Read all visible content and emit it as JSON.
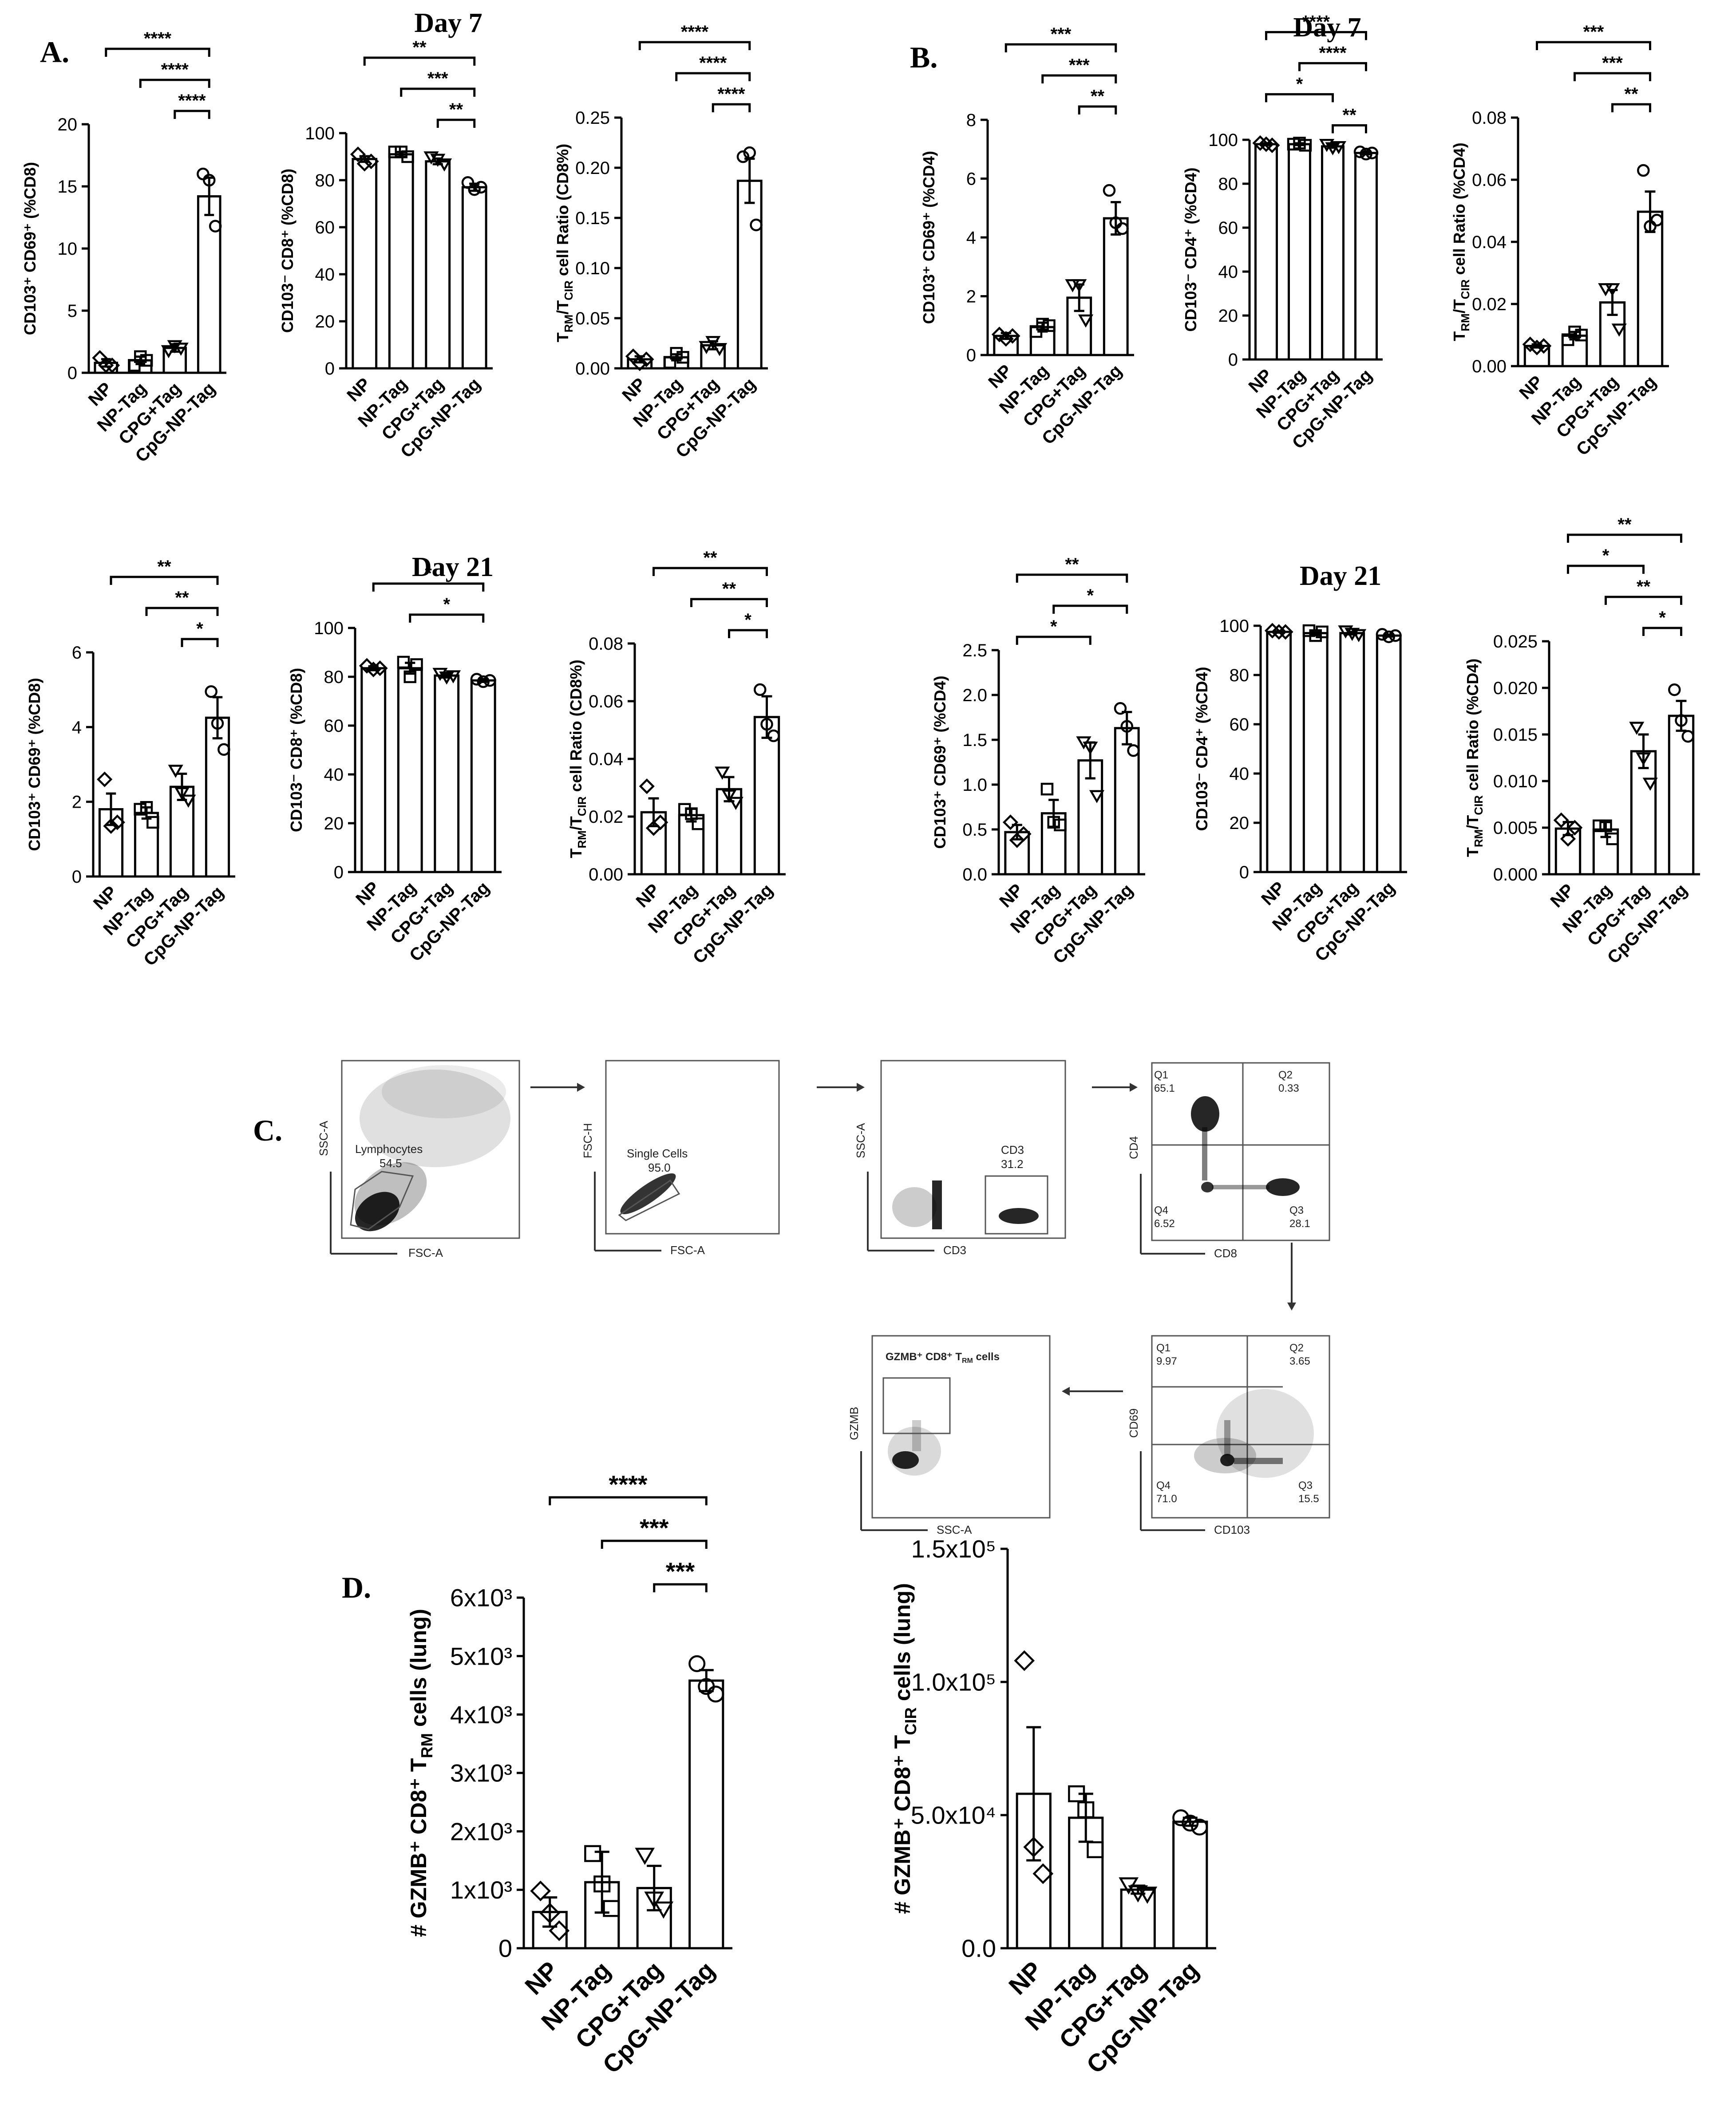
{
  "panels": {
    "A": "A.",
    "B": "B.",
    "C": "C.",
    "D": "D."
  },
  "days": {
    "a_day7": "Day 7",
    "a_day21": "Day 21",
    "b_day7": "Day 7",
    "b_day21": "Day 21"
  },
  "flow": {
    "lymph": {
      "xaxis": "FSC-A",
      "yaxis": "SSC-A",
      "gate": "Lymphocytes",
      "value": "54.5"
    },
    "single": {
      "xaxis": "FSC-A",
      "yaxis": "FSC-H",
      "gate": "Single Cells",
      "value": "95.0"
    },
    "cd3": {
      "xaxis": "CD3",
      "yaxis": "SSC-A",
      "gate": "CD3",
      "value": "31.2"
    },
    "cd4cd8": {
      "xaxis": "CD8",
      "yaxis": "CD4",
      "q": [
        {
          "label": "Q1",
          "value": "65.1"
        },
        {
          "label": "Q2",
          "value": "0.33"
        },
        {
          "label": "Q4",
          "value": "6.52"
        },
        {
          "label": "Q3",
          "value": "28.1"
        }
      ]
    },
    "cd69": {
      "xaxis": "CD103",
      "yaxis": "CD69",
      "q": [
        {
          "label": "Q1",
          "value": "9.97"
        },
        {
          "label": "Q2",
          "value": "3.65"
        },
        {
          "label": "Q4",
          "value": "71.0"
        },
        {
          "label": "Q3",
          "value": "15.5"
        }
      ]
    },
    "gzmb": {
      "xaxis": "SSC-A",
      "yaxis": "GZMB",
      "title": "GZMB⁺ CD8⁺ T",
      "title_sub": "RM",
      "title_tail": " cells"
    }
  },
  "chart_data": [
    {
      "id": "a1",
      "type": "bar",
      "categories": [
        "NP",
        "NP-Tag",
        "CPG+Tag",
        "CpG-NP-Tag"
      ],
      "ylabel": "CD103⁺ CD69⁺ (%CD8)",
      "ylim": [
        0,
        20
      ],
      "yticks": [
        "0",
        "5",
        "10",
        "15",
        "20"
      ],
      "values": [
        0.8,
        1.0,
        2.0,
        14.2
      ],
      "sem": [
        0.3,
        0.3,
        0.3,
        1.5
      ],
      "points": [
        [
          1.2,
          0.6,
          0.6
        ],
        [
          0.6,
          1.3,
          1.0
        ],
        [
          1.8,
          2.2,
          2.0
        ],
        [
          16.0,
          15.5,
          11.8
        ]
      ],
      "markers": [
        "diamond",
        "square",
        "triangle",
        "circle"
      ],
      "sig": [
        {
          "from": 0,
          "to": 3,
          "label": "****"
        },
        {
          "from": 1,
          "to": 3,
          "label": "****"
        },
        {
          "from": 2,
          "to": 3,
          "label": "****"
        }
      ]
    },
    {
      "id": "a2",
      "type": "bar",
      "categories": [
        "NP",
        "NP-Tag",
        "CPG+Tag",
        "CpG-NP-Tag"
      ],
      "ylabel": "CD103⁻ CD8⁺ (%CD8)",
      "ylim": [
        0,
        100
      ],
      "yticks": [
        "0",
        "20",
        "40",
        "60",
        "80",
        "100"
      ],
      "values": [
        89,
        91,
        88,
        77
      ],
      "sem": [
        1.2,
        1.0,
        1.2,
        1.5
      ],
      "points": [
        [
          91,
          87,
          88
        ],
        [
          92,
          92,
          90
        ],
        [
          90,
          89,
          87
        ],
        [
          79,
          76,
          77
        ]
      ],
      "markers": [
        "diamond",
        "square",
        "triangle",
        "circle"
      ],
      "sig": [
        {
          "from": 0,
          "to": 3,
          "label": "**"
        },
        {
          "from": 1,
          "to": 3,
          "label": "***"
        },
        {
          "from": 2,
          "to": 3,
          "label": "**"
        }
      ]
    },
    {
      "id": "a3",
      "type": "bar",
      "categories": [
        "NP",
        "NP-Tag",
        "CPG+Tag",
        "CpG-NP-Tag"
      ],
      "ylabel": "T",
      "ylabel_parts": [
        [
          "T",
          ""
        ],
        [
          "RM",
          "sub"
        ],
        [
          "/T",
          ""
        ],
        [
          "CIR",
          "sub"
        ],
        [
          " cell Ratio (CD8%)",
          ""
        ]
      ],
      "ylim": [
        0,
        0.25
      ],
      "yticks": [
        "0.00",
        "0.05",
        "0.10",
        "0.15",
        "0.20",
        "0.25"
      ],
      "values": [
        0.009,
        0.011,
        0.023,
        0.187
      ],
      "sem": [
        0.003,
        0.003,
        0.004,
        0.022
      ],
      "points": [
        [
          0.012,
          0.005,
          0.009
        ],
        [
          0.006,
          0.015,
          0.011
        ],
        [
          0.022,
          0.027,
          0.02
        ],
        [
          0.211,
          0.215,
          0.143
        ]
      ],
      "markers": [
        "diamond",
        "square",
        "triangle",
        "circle"
      ],
      "sig": [
        {
          "from": 0,
          "to": 3,
          "label": "****"
        },
        {
          "from": 1,
          "to": 3,
          "label": "****"
        },
        {
          "from": 2,
          "to": 3,
          "label": "****"
        }
      ]
    },
    {
      "id": "b1",
      "type": "bar",
      "categories": [
        "NP",
        "NP-Tag",
        "CPG+Tag",
        "CpG-NP-Tag"
      ],
      "ylabel": "CD103⁺ CD69⁺ (%CD4)",
      "ylim": [
        0,
        8
      ],
      "yticks": [
        "0",
        "2",
        "4",
        "6",
        "8"
      ],
      "values": [
        0.65,
        0.95,
        1.95,
        4.65
      ],
      "sem": [
        0.1,
        0.15,
        0.45,
        0.55
      ],
      "points": [
        [
          0.7,
          0.55,
          0.65
        ],
        [
          0.8,
          1.05,
          1.0
        ],
        [
          2.4,
          2.4,
          1.2
        ],
        [
          5.6,
          4.5,
          4.3
        ]
      ],
      "markers": [
        "diamond",
        "square",
        "triangle",
        "circle"
      ],
      "sig": [
        {
          "from": 0,
          "to": 3,
          "label": "***"
        },
        {
          "from": 1,
          "to": 3,
          "label": "***"
        },
        {
          "from": 2,
          "to": 3,
          "label": "**"
        }
      ]
    },
    {
      "id": "b2",
      "type": "bar",
      "categories": [
        "NP",
        "NP-Tag",
        "CPG+Tag",
        "CpG-NP-Tag"
      ],
      "ylabel": "CD103⁻ CD4⁺ (%CD4)",
      "ylim": [
        0,
        100
      ],
      "yticks": [
        "0",
        "20",
        "40",
        "60",
        "80",
        "100"
      ],
      "values": [
        98,
        98,
        97,
        94
      ],
      "sem": [
        0.4,
        0.4,
        0.6,
        0.6
      ],
      "points": [
        [
          98.5,
          98,
          97.5
        ],
        [
          98,
          98.5,
          97.5
        ],
        [
          98,
          96.5,
          97
        ],
        [
          94.5,
          93.5,
          94
        ]
      ],
      "markers": [
        "diamond",
        "square",
        "triangle",
        "circle"
      ],
      "sig": [
        {
          "from": 0,
          "to": 3,
          "label": "****"
        },
        {
          "from": 1,
          "to": 3,
          "label": "****"
        },
        {
          "from": 0,
          "to": 2,
          "label": "*"
        },
        {
          "from": 2,
          "to": 3,
          "label": "**"
        }
      ]
    },
    {
      "id": "b3",
      "type": "bar",
      "categories": [
        "NP",
        "NP-Tag",
        "CPG+Tag",
        "CpG-NP-Tag"
      ],
      "ylabel": "T",
      "ylabel_parts": [
        [
          "T",
          ""
        ],
        [
          "RM",
          "sub"
        ],
        [
          "/T",
          ""
        ],
        [
          "CIR",
          "sub"
        ],
        [
          " cell Ratio (%CD4)",
          ""
        ]
      ],
      "ylim": [
        0,
        0.08
      ],
      "yticks": [
        "0.00",
        "0.02",
        "0.04",
        "0.06",
        "0.08"
      ],
      "values": [
        0.0065,
        0.0098,
        0.0205,
        0.0497
      ],
      "sem": [
        0.0005,
        0.0012,
        0.004,
        0.0065
      ],
      "points": [
        [
          0.007,
          0.006,
          0.0065
        ],
        [
          0.0085,
          0.011,
          0.01
        ],
        [
          0.025,
          0.025,
          0.012
        ],
        [
          0.063,
          0.045,
          0.047
        ]
      ],
      "markers": [
        "diamond",
        "square",
        "triangle",
        "circle"
      ],
      "sig": [
        {
          "from": 0,
          "to": 3,
          "label": "***"
        },
        {
          "from": 1,
          "to": 3,
          "label": "***"
        },
        {
          "from": 2,
          "to": 3,
          "label": "**"
        }
      ]
    },
    {
      "id": "a4",
      "type": "bar",
      "categories": [
        "NP",
        "NP-Tag",
        "CPG+Tag",
        "CpG-NP-Tag"
      ],
      "ylabel": "CD103⁺ CD69⁺ (%CD8)",
      "ylim": [
        0,
        6
      ],
      "yticks": [
        "0",
        "2",
        "4",
        "6"
      ],
      "values": [
        1.8,
        1.7,
        2.4,
        4.25
      ],
      "sem": [
        0.42,
        0.15,
        0.35,
        0.55
      ],
      "points": [
        [
          2.6,
          1.35,
          1.45
        ],
        [
          1.8,
          1.85,
          1.45
        ],
        [
          2.85,
          2.25,
          2.05
        ],
        [
          4.95,
          4.1,
          3.4
        ]
      ],
      "markers": [
        "diamond",
        "square",
        "triangle",
        "circle"
      ],
      "sig": [
        {
          "from": 0,
          "to": 3,
          "label": "**"
        },
        {
          "from": 1,
          "to": 3,
          "label": "**"
        },
        {
          "from": 2,
          "to": 3,
          "label": "*"
        }
      ]
    },
    {
      "id": "a5",
      "type": "bar",
      "categories": [
        "NP",
        "NP-Tag",
        "CPG+Tag",
        "CpG-NP-Tag"
      ],
      "ylabel": "CD103⁻ CD8⁺ (%CD8)",
      "ylim": [
        0,
        100
      ],
      "yticks": [
        "0",
        "20",
        "40",
        "60",
        "80",
        "100"
      ],
      "values": [
        83.5,
        83.5,
        80.5,
        78.5
      ],
      "sem": [
        0.8,
        2.2,
        0.8,
        0.6
      ],
      "points": [
        [
          84.5,
          83,
          83.5
        ],
        [
          86,
          80,
          85
        ],
        [
          81.5,
          80,
          80.5
        ],
        [
          79,
          78,
          78.5
        ]
      ],
      "markers": [
        "diamond",
        "square",
        "triangle",
        "circle"
      ],
      "sig": [
        {
          "from": 0,
          "to": 3,
          "label": "*"
        },
        {
          "from": 1,
          "to": 3,
          "label": "*"
        }
      ]
    },
    {
      "id": "a6",
      "type": "bar",
      "categories": [
        "NP",
        "NP-Tag",
        "CPG+Tag",
        "CpG-NP-Tag"
      ],
      "ylabel": "T",
      "ylabel_parts": [
        [
          "T",
          ""
        ],
        [
          "RM",
          "sub"
        ],
        [
          "/T",
          ""
        ],
        [
          "CIR",
          "sub"
        ],
        [
          " cell Ratio (CD8%)",
          ""
        ]
      ],
      "ylim": [
        0,
        0.08
      ],
      "yticks": [
        "0.00",
        "0.02",
        "0.04",
        "0.06",
        "0.08"
      ],
      "values": [
        0.0215,
        0.0205,
        0.0295,
        0.0545
      ],
      "sem": [
        0.0048,
        0.0022,
        0.0042,
        0.0072
      ],
      "points": [
        [
          0.0305,
          0.016,
          0.018
        ],
        [
          0.0225,
          0.021,
          0.0175
        ],
        [
          0.0355,
          0.0275,
          0.025
        ],
        [
          0.064,
          0.052,
          0.048
        ]
      ],
      "markers": [
        "diamond",
        "square",
        "triangle",
        "circle"
      ],
      "sig": [
        {
          "from": 0,
          "to": 3,
          "label": "**"
        },
        {
          "from": 1,
          "to": 3,
          "label": "**"
        },
        {
          "from": 2,
          "to": 3,
          "label": "*"
        }
      ]
    },
    {
      "id": "b4",
      "type": "bar",
      "categories": [
        "NP",
        "NP-Tag",
        "CPG+Tag",
        "CpG-NP-Tag"
      ],
      "ylabel": "CD103⁺ CD69⁺ (%CD4)",
      "ylim": [
        0,
        2.5
      ],
      "yticks": [
        "0.0",
        "0.5",
        "1.0",
        "1.5",
        "2.0",
        "2.5"
      ],
      "values": [
        0.47,
        0.68,
        1.27,
        1.63
      ],
      "sem": [
        0.08,
        0.15,
        0.2,
        0.18
      ],
      "points": [
        [
          0.58,
          0.38,
          0.45
        ],
        [
          0.95,
          0.58,
          0.55
        ],
        [
          1.48,
          1.42,
          0.88
        ],
        [
          1.85,
          1.65,
          1.38
        ]
      ],
      "markers": [
        "diamond",
        "square",
        "triangle",
        "circle"
      ],
      "sig": [
        {
          "from": 0,
          "to": 3,
          "label": "**"
        },
        {
          "from": 1,
          "to": 3,
          "label": "*"
        },
        {
          "from": 0,
          "to": 2,
          "label": "*"
        }
      ]
    },
    {
      "id": "b5",
      "type": "bar",
      "categories": [
        "NP",
        "NP-Tag",
        "CPG+Tag",
        "CpG-NP-Tag"
      ],
      "ylabel": "CD103⁻ CD4⁺ (%CD4)",
      "ylim": [
        0,
        100
      ],
      "yticks": [
        "0",
        "20",
        "40",
        "60",
        "80",
        "100"
      ],
      "values": [
        97.5,
        97,
        97,
        96
      ],
      "sem": [
        0.3,
        0.8,
        0.5,
        0.4
      ],
      "points": [
        [
          98,
          97.5,
          97.5
        ],
        [
          98,
          96,
          97.5
        ],
        [
          98,
          97,
          96.5
        ],
        [
          96.5,
          95.5,
          96
        ]
      ],
      "markers": [
        "diamond",
        "square",
        "triangle",
        "circle"
      ],
      "sig": []
    },
    {
      "id": "b6",
      "type": "bar",
      "categories": [
        "NP",
        "NP-Tag",
        "CPG+Tag",
        "CpG-NP-Tag"
      ],
      "ylabel": "T",
      "ylabel_parts": [
        [
          "T",
          ""
        ],
        [
          "RM",
          "sub"
        ],
        [
          "/T",
          ""
        ],
        [
          "CIR",
          "sub"
        ],
        [
          " cell Ratio (%CD4)",
          ""
        ]
      ],
      "ylim": [
        0,
        0.025
      ],
      "yticks": [
        "0.000",
        "0.005",
        "0.010",
        "0.015",
        "0.020",
        "0.025"
      ],
      "values": [
        0.0049,
        0.0048,
        0.0132,
        0.017
      ],
      "sem": [
        0.0007,
        0.0008,
        0.0018,
        0.0016
      ],
      "points": [
        [
          0.0058,
          0.0038,
          0.005
        ],
        [
          0.0052,
          0.0052,
          0.0038
        ],
        [
          0.0158,
          0.0125,
          0.0098
        ],
        [
          0.0198,
          0.0165,
          0.0148
        ]
      ],
      "markers": [
        "diamond",
        "square",
        "triangle",
        "circle"
      ],
      "sig": [
        {
          "from": 0,
          "to": 3,
          "label": "**"
        },
        {
          "from": 0,
          "to": 2,
          "label": "*"
        },
        {
          "from": 1,
          "to": 3,
          "label": "**"
        },
        {
          "from": 2,
          "to": 3,
          "label": "*"
        }
      ]
    },
    {
      "id": "d1",
      "type": "bar",
      "categories": [
        "NP",
        "NP-Tag",
        "CPG+Tag",
        "CpG-NP-Tag"
      ],
      "ylabel": "# GZMB⁺ CD8⁺ T",
      "ylabel_parts": [
        [
          "# GZMB⁺ CD8⁺ T",
          ""
        ],
        [
          "RM",
          "sub"
        ],
        [
          " cells (lung)",
          ""
        ]
      ],
      "ylim": [
        0,
        6000
      ],
      "yticks": [
        "0",
        "1x10³",
        "2x10³",
        "3x10³",
        "4x10³",
        "5x10³",
        "6x10³"
      ],
      "values": [
        620,
        1130,
        1030,
        4580
      ],
      "sem": [
        250,
        520,
        380,
        180
      ],
      "points": [
        [
          980,
          600,
          300
        ],
        [
          1620,
          1100,
          680
        ],
        [
          1600,
          850,
          680
        ],
        [
          4870,
          4480,
          4350
        ]
      ],
      "markers": [
        "diamond",
        "square",
        "triangle",
        "circle"
      ],
      "sig": [
        {
          "from": 0,
          "to": 3,
          "label": "****"
        },
        {
          "from": 1,
          "to": 3,
          "label": "***"
        },
        {
          "from": 2,
          "to": 3,
          "label": "***"
        }
      ]
    },
    {
      "id": "d2",
      "type": "bar",
      "categories": [
        "NP",
        "NP-Tag",
        "CPG+Tag",
        "CpG-NP-Tag"
      ],
      "ylabel": "# GZMB⁺ CD8⁺ T",
      "ylabel_parts": [
        [
          "# GZMB⁺ CD8⁺ T",
          ""
        ],
        [
          "CIR",
          "sub"
        ],
        [
          " cells (lung)",
          ""
        ]
      ],
      "ylim": [
        0,
        150000
      ],
      "yticks": [
        "0.0",
        "5.0x10⁴",
        "1.0x10⁵",
        "1.5x10⁵"
      ],
      "values": [
        58000,
        49000,
        22000,
        47500
      ],
      "sem": [
        25000,
        9000,
        1500,
        1500
      ],
      "points": [
        [
          108000,
          38000,
          28000
        ],
        [
          58000,
          52000,
          37000
        ],
        [
          24000,
          21000,
          20500
        ],
        [
          49000,
          47000,
          45500
        ]
      ],
      "markers": [
        "diamond",
        "square",
        "triangle",
        "circle"
      ],
      "sig": []
    }
  ]
}
